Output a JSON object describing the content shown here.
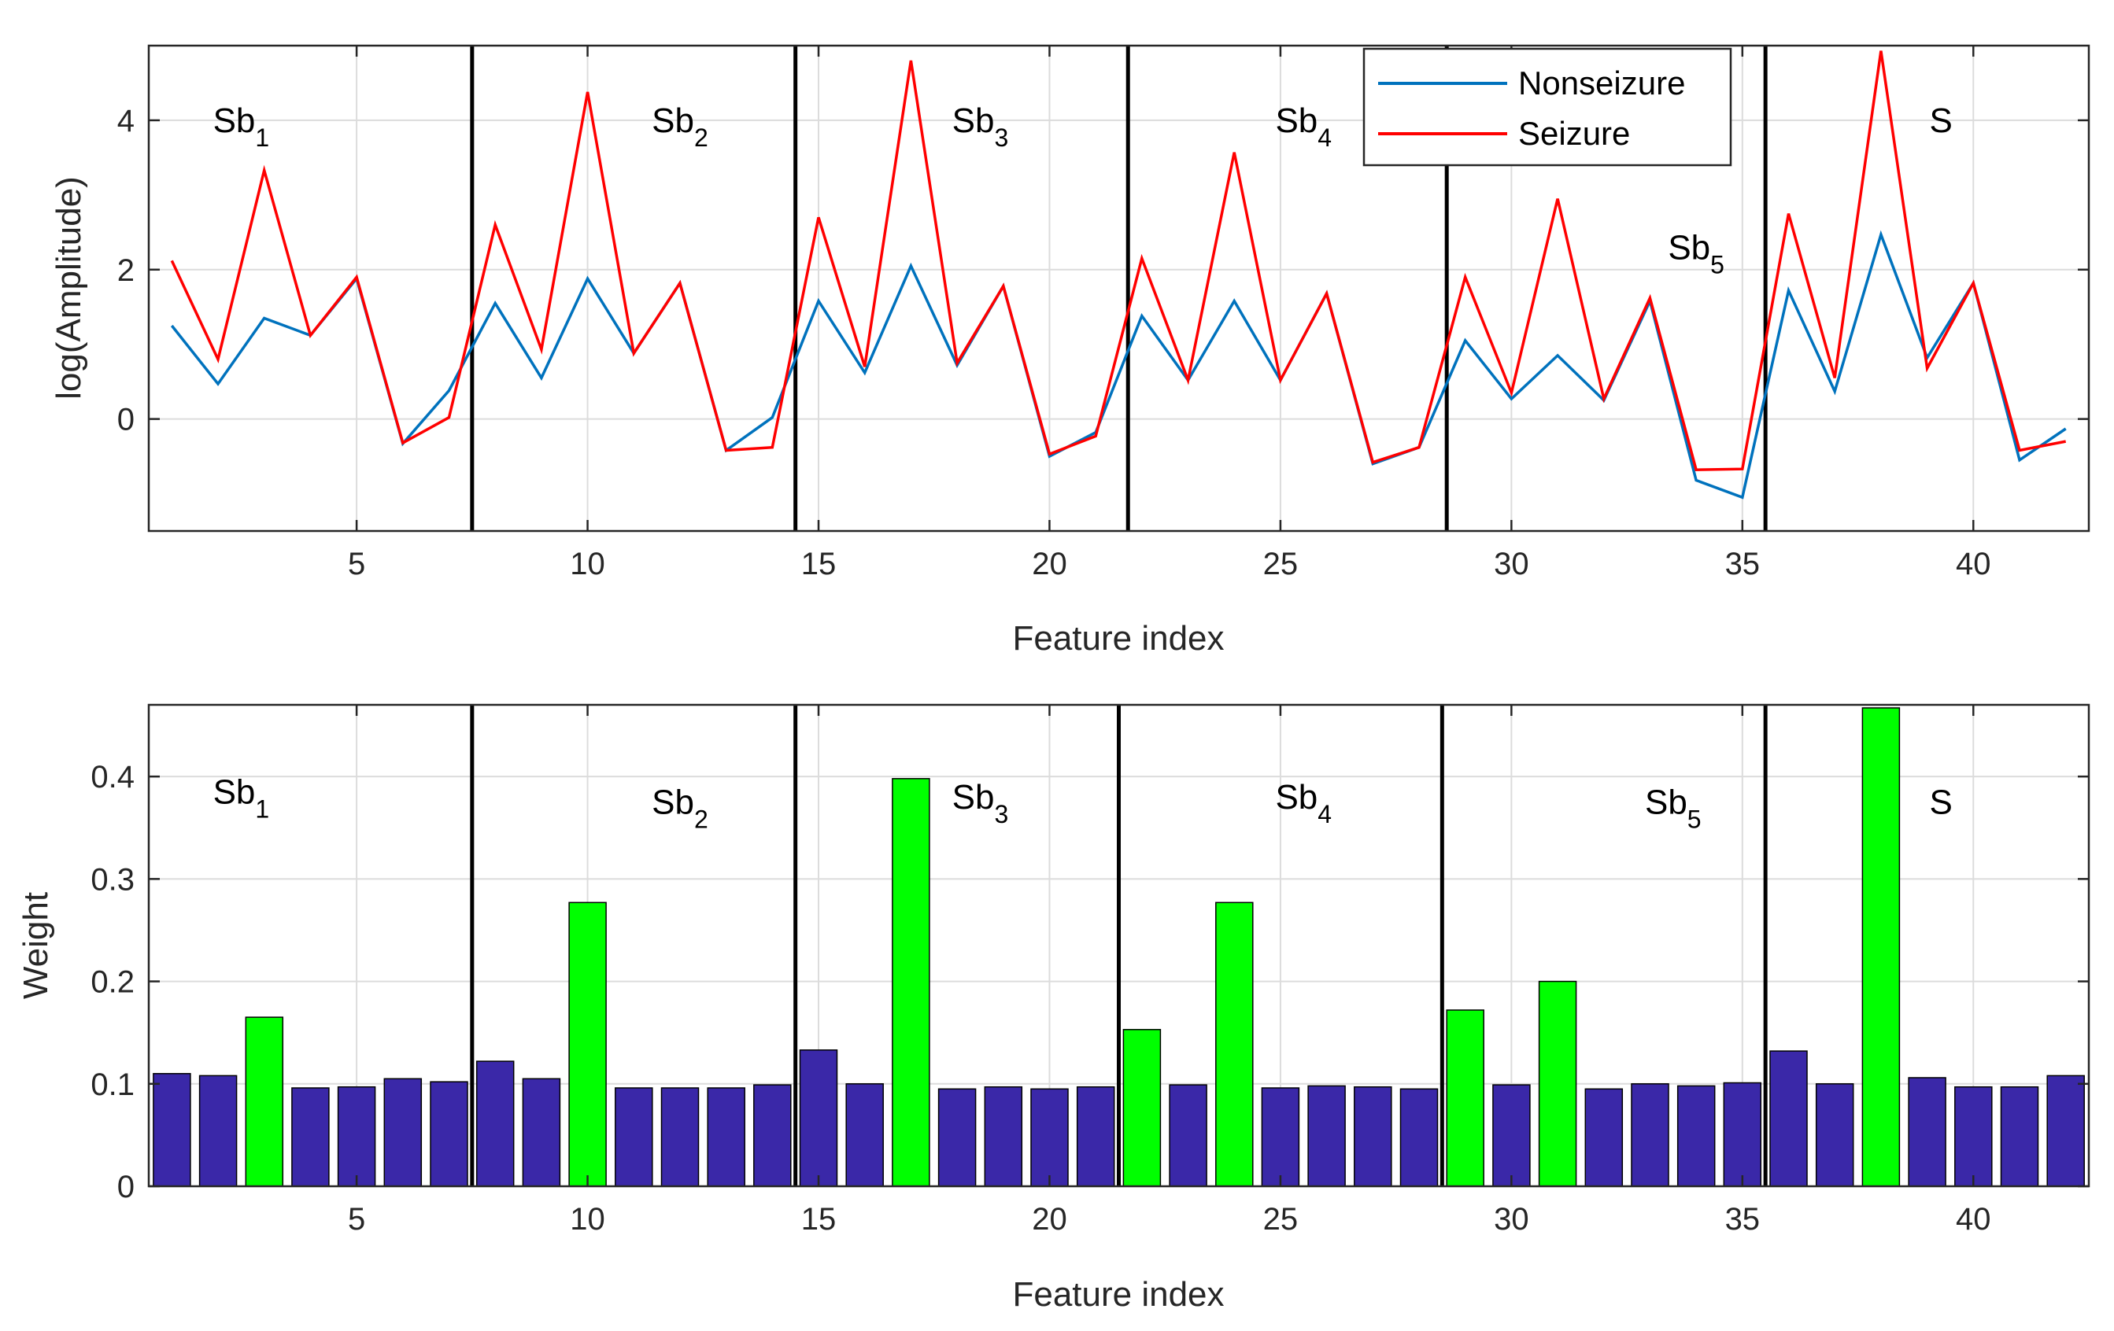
{
  "chart_data": [
    {
      "type": "line",
      "xlabel": "Feature index",
      "ylabel": "log(Amplitude)",
      "xlim": [
        0.5,
        42.5
      ],
      "ylim": [
        -1.5,
        5
      ],
      "xticks": [
        5,
        10,
        15,
        20,
        25,
        30,
        35,
        40
      ],
      "yticks": [
        0,
        2,
        4
      ],
      "x": [
        1,
        2,
        3,
        4,
        5,
        6,
        7,
        8,
        9,
        10,
        11,
        12,
        13,
        14,
        15,
        16,
        17,
        18,
        19,
        20,
        21,
        22,
        23,
        24,
        25,
        26,
        27,
        28,
        29,
        30,
        31,
        32,
        33,
        34,
        35,
        36,
        37,
        38,
        39,
        40,
        41,
        42
      ],
      "series": [
        {
          "name": "Nonseizure",
          "color": "#0072BD",
          "values": [
            1.25,
            0.47,
            1.35,
            1.12,
            1.88,
            -0.33,
            0.38,
            1.55,
            0.55,
            1.88,
            0.88,
            1.82,
            -0.42,
            0.02,
            1.58,
            0.62,
            2.05,
            0.72,
            1.78,
            -0.5,
            -0.18,
            1.38,
            0.52,
            1.58,
            0.52,
            1.68,
            -0.6,
            -0.38,
            1.05,
            0.27,
            0.85,
            0.25,
            1.58,
            -0.82,
            -1.05,
            1.72,
            0.37,
            2.47,
            0.82,
            1.82,
            -0.55,
            -0.13
          ]
        },
        {
          "name": "Seizure",
          "color": "#FF0000",
          "values": [
            2.12,
            0.8,
            3.33,
            1.12,
            1.9,
            -0.32,
            0.02,
            2.6,
            0.93,
            4.38,
            0.88,
            1.82,
            -0.42,
            -0.38,
            2.7,
            0.7,
            4.8,
            0.75,
            1.78,
            -0.47,
            -0.23,
            2.15,
            0.52,
            3.57,
            0.52,
            1.68,
            -0.58,
            -0.38,
            1.9,
            0.35,
            2.95,
            0.27,
            1.62,
            -0.68,
            -0.67,
            2.75,
            0.55,
            4.93,
            0.68,
            1.82,
            -0.42,
            -0.3
          ]
        }
      ],
      "separators": [
        7.5,
        14.5,
        21.7,
        28.6,
        35.5
      ],
      "segments": [
        {
          "base": "Sb",
          "sub": "1",
          "x": 2.5,
          "y": 4.0
        },
        {
          "base": "Sb",
          "sub": "2",
          "x": 12.0,
          "y": 4.0
        },
        {
          "base": "Sb",
          "sub": "3",
          "x": 18.5,
          "y": 4.0
        },
        {
          "base": "Sb",
          "sub": "4",
          "x": 25.5,
          "y": 4.0
        },
        {
          "base": "Sb",
          "sub": "5",
          "x": 34.0,
          "y": 2.3
        },
        {
          "base": "S",
          "sub": "",
          "x": 39.3,
          "y": 4.0
        }
      ],
      "legend": {
        "position": "top-right",
        "entries": [
          "Nonseizure",
          "Seizure"
        ]
      },
      "grid": true
    },
    {
      "type": "bar",
      "xlabel": "Feature index",
      "ylabel": "Weight",
      "xlim": [
        0.5,
        42.5
      ],
      "ylim": [
        0,
        0.47
      ],
      "xticks": [
        5,
        10,
        15,
        20,
        25,
        30,
        35,
        40
      ],
      "yticks": [
        0,
        0.1,
        0.2,
        0.3,
        0.4
      ],
      "categories": [
        1,
        2,
        3,
        4,
        5,
        6,
        7,
        8,
        9,
        10,
        11,
        12,
        13,
        14,
        15,
        16,
        17,
        18,
        19,
        20,
        21,
        22,
        23,
        24,
        25,
        26,
        27,
        28,
        29,
        30,
        31,
        32,
        33,
        34,
        35,
        36,
        37,
        38,
        39,
        40,
        41,
        42
      ],
      "values": [
        0.11,
        0.108,
        0.165,
        0.096,
        0.097,
        0.105,
        0.102,
        0.122,
        0.105,
        0.277,
        0.096,
        0.096,
        0.096,
        0.099,
        0.133,
        0.1,
        0.398,
        0.095,
        0.097,
        0.095,
        0.097,
        0.153,
        0.099,
        0.277,
        0.096,
        0.098,
        0.097,
        0.095,
        0.172,
        0.099,
        0.2,
        0.095,
        0.1,
        0.098,
        0.101,
        0.132,
        0.1,
        0.467,
        0.106,
        0.097,
        0.097,
        0.108
      ],
      "highlighted": [
        3,
        10,
        17,
        22,
        24,
        29,
        31,
        38
      ],
      "colors": {
        "normal": "#3A28A8",
        "highlight": "#00FF00"
      },
      "separators": [
        7.5,
        14.5,
        21.5,
        28.5,
        35.5
      ],
      "segments": [
        {
          "base": "Sb",
          "sub": "1",
          "x": 2.5,
          "y": 0.385
        },
        {
          "base": "Sb",
          "sub": "2",
          "x": 12.0,
          "y": 0.375
        },
        {
          "base": "Sb",
          "sub": "3",
          "x": 18.5,
          "y": 0.38
        },
        {
          "base": "Sb",
          "sub": "4",
          "x": 25.5,
          "y": 0.38
        },
        {
          "base": "Sb",
          "sub": "5",
          "x": 33.5,
          "y": 0.375
        },
        {
          "base": "S",
          "sub": "",
          "x": 39.3,
          "y": 0.375
        }
      ],
      "grid": true
    }
  ]
}
